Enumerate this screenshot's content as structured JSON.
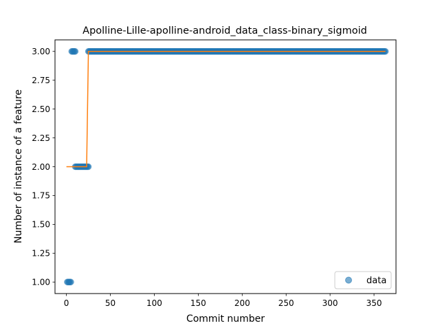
{
  "chart_data": {
    "type": "scatter",
    "title": "Apolline-Lille-apolline-android_data_class-binary_sigmoid",
    "xlabel": "Commit number",
    "ylabel": "Number of instance of a feature",
    "xlim": [
      -13,
      375
    ],
    "ylim": [
      0.9,
      3.1
    ],
    "xticks": [
      0,
      50,
      100,
      150,
      200,
      250,
      300,
      350
    ],
    "yticks": [
      1.0,
      1.25,
      1.5,
      1.75,
      2.0,
      2.25,
      2.5,
      2.75,
      3.0
    ],
    "xtick_labels": [
      "0",
      "50",
      "100",
      "150",
      "200",
      "250",
      "300",
      "350"
    ],
    "ytick_labels": [
      "1.00",
      "1.25",
      "1.50",
      "1.75",
      "2.00",
      "2.25",
      "2.50",
      "2.75",
      "3.00"
    ],
    "grid": false,
    "legend": {
      "entries": [
        "data"
      ],
      "placement": "lower-right"
    },
    "series": [
      {
        "name": "data",
        "kind": "points",
        "color": "#1f77b4",
        "segments": [
          {
            "x_start": 1,
            "x_end": 5,
            "y": 1.0
          },
          {
            "x_start": 6,
            "x_end": 10,
            "y": 3.0
          },
          {
            "x_start": 10,
            "x_end": 25,
            "y": 2.0
          },
          {
            "x_start": 25,
            "x_end": 363,
            "y": 3.0
          }
        ]
      },
      {
        "kind": "fit-line",
        "color": "#ff7f0e",
        "points": [
          [
            0,
            2.0
          ],
          [
            23,
            2.0
          ],
          [
            25,
            3.0
          ],
          [
            363,
            3.0
          ]
        ]
      }
    ]
  }
}
